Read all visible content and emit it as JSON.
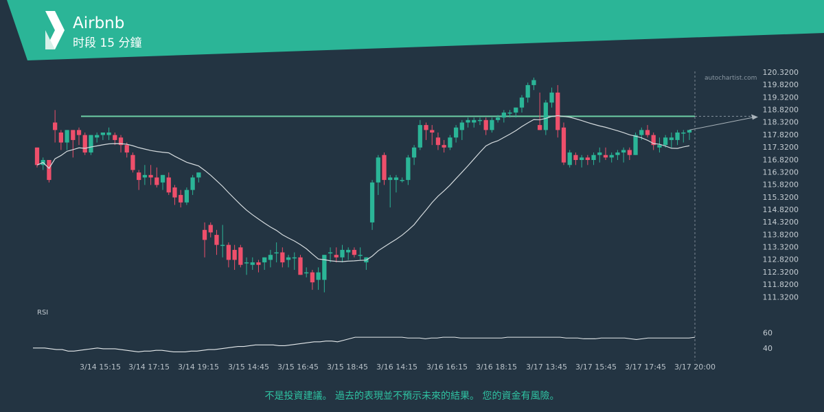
{
  "header": {
    "title": "Airbnb",
    "subtitle": "时段 15 分鐘",
    "colors": {
      "banner": "#2bb597",
      "background": "#233442"
    }
  },
  "watermark": "autochartist.com",
  "disclaimer": "不是投資建議。 過去的表現並不預示未來的結果。 您的資金有風險。",
  "chart_data": [
    {
      "type": "candlestick",
      "ylim": [
        111.3,
        120.32
      ],
      "yticks": [
        "120.3200",
        "119.8200",
        "119.3200",
        "118.8200",
        "118.3200",
        "117.8200",
        "117.3200",
        "116.8200",
        "116.3200",
        "115.8200",
        "115.3200",
        "114.8200",
        "114.3200",
        "113.8200",
        "113.3200",
        "112.8200",
        "112.3200",
        "111.8200",
        "111.3200"
      ],
      "x_labels": [
        "3/14 15:15",
        "3/14 17:15",
        "3/14 19:15",
        "3/15 14:45",
        "3/15 16:45",
        "3/15 18:45",
        "3/16 14:15",
        "3/16 16:15",
        "3/16 18:15",
        "3/17 13:45",
        "3/17 15:45",
        "3/17 17:45",
        "3/17 20:00"
      ],
      "resistance_level": 118.55,
      "colors": {
        "up": "#2bb597",
        "down": "#ee4f6b",
        "ma": "#d6dcdf",
        "level": "#6ecfa6",
        "forecast": "#aab4bb"
      },
      "ohlc": [
        [
          117.3,
          117.3,
          116.5,
          116.6
        ],
        [
          116.6,
          116.9,
          116.4,
          116.8
        ],
        [
          116.8,
          116.8,
          115.9,
          116.0
        ],
        [
          118.3,
          118.8,
          117.5,
          118.0
        ],
        [
          117.9,
          118.0,
          117.2,
          117.5
        ],
        [
          117.5,
          118.0,
          117.2,
          118.0
        ],
        [
          118.0,
          118.0,
          116.9,
          117.6
        ],
        [
          118.0,
          118.1,
          117.4,
          117.8
        ],
        [
          117.8,
          117.9,
          117.0,
          117.1
        ],
        [
          117.1,
          117.8,
          117.0,
          117.8
        ],
        [
          117.7,
          117.9,
          117.5,
          117.8
        ],
        [
          117.8,
          117.9,
          117.6,
          117.9
        ],
        [
          117.8,
          118.1,
          117.6,
          117.9
        ],
        [
          117.8,
          117.9,
          117.4,
          117.6
        ],
        [
          117.7,
          117.8,
          117.1,
          117.4
        ],
        [
          117.4,
          117.5,
          116.9,
          117.1
        ],
        [
          117.0,
          117.1,
          116.3,
          116.4
        ],
        [
          116.3,
          116.4,
          115.6,
          116.0
        ],
        [
          116.1,
          116.6,
          115.8,
          116.2
        ],
        [
          116.2,
          116.6,
          115.8,
          116.1
        ],
        [
          116.1,
          116.5,
          115.7,
          115.8
        ],
        [
          115.9,
          116.2,
          115.6,
          116.2
        ],
        [
          116.1,
          116.3,
          115.4,
          115.5
        ],
        [
          115.7,
          115.8,
          115.0,
          115.3
        ],
        [
          115.4,
          115.6,
          114.9,
          115.1
        ],
        [
          115.1,
          115.7,
          115.0,
          115.6
        ],
        [
          115.6,
          116.2,
          115.4,
          116.1
        ],
        [
          116.1,
          116.3,
          115.9,
          116.3
        ],
        [
          114.0,
          114.3,
          112.9,
          113.6
        ],
        [
          114.2,
          114.3,
          113.7,
          113.9
        ],
        [
          113.8,
          114.0,
          113.0,
          113.4
        ],
        [
          113.4,
          114.2,
          112.9,
          113.4
        ],
        [
          113.4,
          113.5,
          112.5,
          112.8
        ],
        [
          113.2,
          113.4,
          112.4,
          112.8
        ],
        [
          113.3,
          113.4,
          112.5,
          112.6
        ],
        [
          112.7,
          112.9,
          112.2,
          112.7
        ],
        [
          112.6,
          112.9,
          112.4,
          112.7
        ],
        [
          112.7,
          112.8,
          112.3,
          112.6
        ],
        [
          112.7,
          112.9,
          112.4,
          112.9
        ],
        [
          112.8,
          113.2,
          112.5,
          113.0
        ],
        [
          113.1,
          113.5,
          112.7,
          113.1
        ],
        [
          113.1,
          113.3,
          112.5,
          112.7
        ],
        [
          112.8,
          113.0,
          112.5,
          112.9
        ],
        [
          112.9,
          113.1,
          112.4,
          112.9
        ],
        [
          112.9,
          113.0,
          112.2,
          112.2
        ],
        [
          112.3,
          112.5,
          112.1,
          112.3
        ],
        [
          112.3,
          112.4,
          111.6,
          111.9
        ],
        [
          112.0,
          112.5,
          111.6,
          112.3
        ],
        [
          112.0,
          113.0,
          111.5,
          113.0
        ],
        [
          113.1,
          113.3,
          112.7,
          113.1
        ],
        [
          113.0,
          113.3,
          112.7,
          112.9
        ],
        [
          112.9,
          113.4,
          112.7,
          113.2
        ],
        [
          113.1,
          113.3,
          112.8,
          113.2
        ],
        [
          113.2,
          113.3,
          112.9,
          113.0
        ],
        [
          113.0,
          113.3,
          112.8,
          113.0
        ],
        [
          112.7,
          112.9,
          112.4,
          112.9
        ],
        [
          114.3,
          116.0,
          114.0,
          115.9
        ],
        [
          115.9,
          117.0,
          115.4,
          116.9
        ],
        [
          117.0,
          117.1,
          115.8,
          116.0
        ],
        [
          116.0,
          116.2,
          114.9,
          116.1
        ],
        [
          116.0,
          116.2,
          115.5,
          116.1
        ],
        [
          116.0,
          116.1,
          115.9,
          116.0
        ],
        [
          116.0,
          117.0,
          115.8,
          116.9
        ],
        [
          116.9,
          117.4,
          116.6,
          117.3
        ],
        [
          117.3,
          118.4,
          117.2,
          118.2
        ],
        [
          118.2,
          118.3,
          117.6,
          118.0
        ],
        [
          118.0,
          118.2,
          117.4,
          117.9
        ],
        [
          117.7,
          117.9,
          117.2,
          117.4
        ],
        [
          117.4,
          117.6,
          117.1,
          117.3
        ],
        [
          117.3,
          117.8,
          117.2,
          117.7
        ],
        [
          117.7,
          118.2,
          117.5,
          118.1
        ],
        [
          118.0,
          118.4,
          117.6,
          118.3
        ],
        [
          118.3,
          118.5,
          118.1,
          118.4
        ],
        [
          118.3,
          118.5,
          118.1,
          118.4
        ],
        [
          118.4,
          118.5,
          118.2,
          118.4
        ],
        [
          118.4,
          118.5,
          117.8,
          118.0
        ],
        [
          118.0,
          118.5,
          117.9,
          118.4
        ],
        [
          118.4,
          118.6,
          118.3,
          118.5
        ],
        [
          118.5,
          118.8,
          118.3,
          118.7
        ],
        [
          118.7,
          118.8,
          118.5,
          118.7
        ],
        [
          118.7,
          118.9,
          118.5,
          118.9
        ],
        [
          118.9,
          119.4,
          118.7,
          119.3
        ],
        [
          119.3,
          119.9,
          119.1,
          119.8
        ],
        [
          119.8,
          120.1,
          119.6,
          120.0
        ],
        [
          118.2,
          119.5,
          118.0,
          118.0
        ],
        [
          118.0,
          119.2,
          117.8,
          119.1
        ],
        [
          119.1,
          119.7,
          118.9,
          119.5
        ],
        [
          119.5,
          119.8,
          117.7,
          118.0
        ],
        [
          118.1,
          118.3,
          116.6,
          116.7
        ],
        [
          116.6,
          117.2,
          116.5,
          117.1
        ],
        [
          117.0,
          117.1,
          116.6,
          116.8
        ],
        [
          116.8,
          117.0,
          116.5,
          116.9
        ],
        [
          116.9,
          117.0,
          116.6,
          116.8
        ],
        [
          116.8,
          117.1,
          116.6,
          117.0
        ],
        [
          117.0,
          117.3,
          116.7,
          117.1
        ],
        [
          117.0,
          117.3,
          116.8,
          116.9
        ],
        [
          116.9,
          117.1,
          116.7,
          117.0
        ],
        [
          117.0,
          117.2,
          116.8,
          117.1
        ],
        [
          117.1,
          117.3,
          116.7,
          117.2
        ],
        [
          117.2,
          117.3,
          116.8,
          117.0
        ],
        [
          117.0,
          117.9,
          117.0,
          117.8
        ],
        [
          117.8,
          118.1,
          117.6,
          118.0
        ],
        [
          118.0,
          118.2,
          117.7,
          117.8
        ],
        [
          117.8,
          117.9,
          117.2,
          117.4
        ],
        [
          117.3,
          117.7,
          117.1,
          117.4
        ],
        [
          117.4,
          117.8,
          117.3,
          117.7
        ],
        [
          117.6,
          117.9,
          117.3,
          117.7
        ],
        [
          117.6,
          118.0,
          117.4,
          117.9
        ],
        [
          117.9,
          118.0,
          117.5,
          117.9
        ],
        [
          117.9,
          118.0,
          117.6,
          118.0
        ]
      ]
    },
    {
      "type": "line",
      "ylim": [
        30,
        80
      ],
      "yticks": [
        "60",
        "40"
      ],
      "values": [
        40,
        40,
        40,
        39,
        38,
        38,
        36,
        36,
        37,
        38,
        39,
        40,
        39,
        39,
        39,
        38,
        37,
        36,
        35,
        36,
        36,
        37,
        37,
        36,
        35,
        35,
        35,
        36,
        36,
        37,
        38,
        38,
        39,
        40,
        41,
        42,
        42,
        43,
        44,
        44,
        44,
        44,
        43,
        43,
        44,
        45,
        46,
        47,
        48,
        48,
        49,
        49,
        48,
        50,
        52,
        54,
        54,
        54,
        54,
        54,
        54,
        54,
        54,
        54,
        53,
        53,
        53,
        52,
        53,
        53,
        54,
        54,
        54,
        53,
        53,
        53,
        53,
        53,
        53,
        53,
        53,
        54,
        54,
        54,
        54,
        54,
        54,
        54,
        54,
        54,
        54,
        53,
        53,
        53,
        52,
        52,
        52,
        53,
        53,
        53,
        53,
        53,
        52,
        51,
        52,
        53,
        53,
        53,
        53,
        53,
        53,
        53,
        53,
        54
      ]
    }
  ]
}
